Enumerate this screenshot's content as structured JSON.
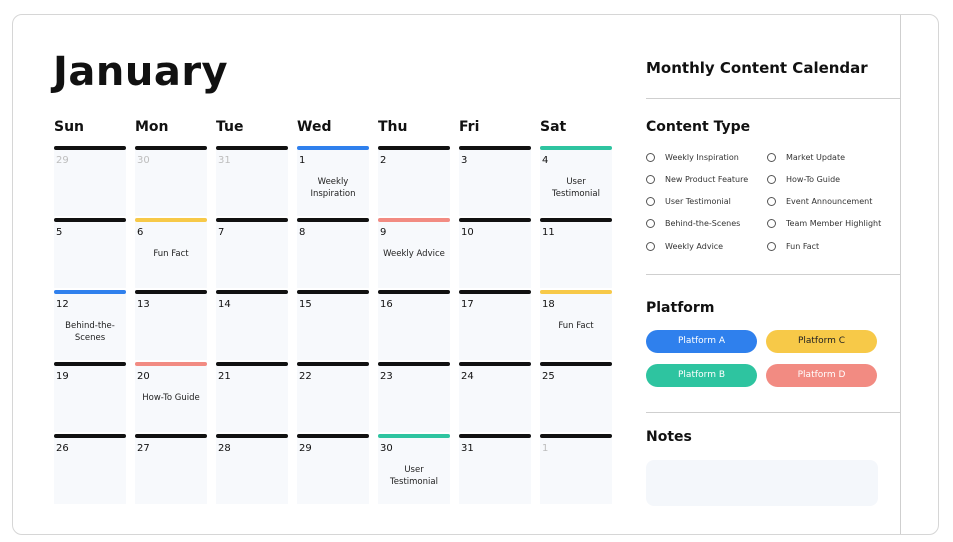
{
  "month": "January",
  "weekdays": [
    "Sun",
    "Mon",
    "Tue",
    "Wed",
    "Thu",
    "Fri",
    "Sat"
  ],
  "colors": {
    "default_bar": "#111111",
    "blue": "#2f80ed",
    "yellow": "#f7c948",
    "teal": "#2ec4a0",
    "pink": "#f28b82"
  },
  "days": [
    {
      "n": "29",
      "muted": true
    },
    {
      "n": "30",
      "muted": true
    },
    {
      "n": "31",
      "muted": true
    },
    {
      "n": "1",
      "event": "Weekly Inspiration",
      "bar": "blue"
    },
    {
      "n": "2"
    },
    {
      "n": "3"
    },
    {
      "n": "4",
      "event": "User Testimonial",
      "bar": "teal"
    },
    {
      "n": "5"
    },
    {
      "n": "6",
      "event": "Fun Fact",
      "bar": "yellow"
    },
    {
      "n": "7"
    },
    {
      "n": "8"
    },
    {
      "n": "9",
      "event": "Weekly Advice",
      "bar": "pink"
    },
    {
      "n": "10"
    },
    {
      "n": "11"
    },
    {
      "n": "12",
      "event": "Behind-the-Scenes",
      "bar": "blue"
    },
    {
      "n": "13"
    },
    {
      "n": "14"
    },
    {
      "n": "15"
    },
    {
      "n": "16"
    },
    {
      "n": "17"
    },
    {
      "n": "18",
      "event": "Fun Fact",
      "bar": "yellow"
    },
    {
      "n": "19"
    },
    {
      "n": "20",
      "event": "How-To Guide",
      "bar": "pink"
    },
    {
      "n": "21"
    },
    {
      "n": "22"
    },
    {
      "n": "23"
    },
    {
      "n": "24"
    },
    {
      "n": "25"
    },
    {
      "n": "26"
    },
    {
      "n": "27"
    },
    {
      "n": "28"
    },
    {
      "n": "29"
    },
    {
      "n": "30",
      "event": "User Testimonial",
      "bar": "teal"
    },
    {
      "n": "31"
    },
    {
      "n": "1",
      "muted": true
    }
  ],
  "sidebar": {
    "title": "Monthly Content Calendar",
    "content_type": {
      "heading": "Content Type",
      "items": [
        "Weekly Inspiration",
        "Market Update",
        "New Product Feature",
        "How-To Guide",
        "User Testimonial",
        "Event Announcement",
        "Behind-the-Scenes",
        "Team Member Highlight",
        "Weekly Advice",
        "Fun Fact"
      ]
    },
    "platform": {
      "heading": "Platform",
      "items": [
        {
          "label": "Platform A",
          "bg": "#2f80ed",
          "fg": "#ffffff"
        },
        {
          "label": "Platform C",
          "bg": "#f7c948",
          "fg": "#222222"
        },
        {
          "label": "Platform B",
          "bg": "#2ec4a0",
          "fg": "#ffffff"
        },
        {
          "label": "Platform D",
          "bg": "#f28b82",
          "fg": "#ffffff"
        }
      ]
    },
    "notes": {
      "heading": "Notes"
    }
  }
}
